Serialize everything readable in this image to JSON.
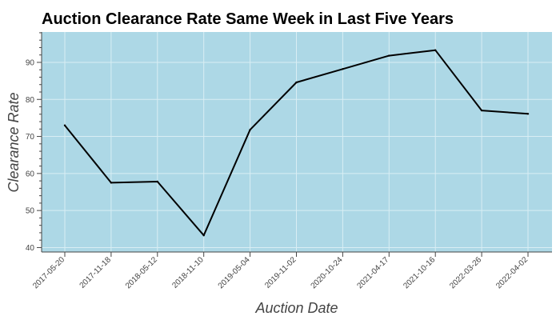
{
  "chart_data": {
    "type": "line",
    "title": "Auction Clearance Rate Same Week in Last Five Years",
    "xlabel": "Auction Date",
    "ylabel": "Clearance Rate",
    "categories": [
      "2017-05-20",
      "2017-11-18",
      "2018-05-12",
      "2018-11-10",
      "2019-05-04",
      "2019-11-02",
      "2020-10-24",
      "2021-04-17",
      "2021-10-16",
      "2022-03-26",
      "2022-04-02"
    ],
    "series": [
      {
        "values": [
          73.0,
          57.5,
          57.8,
          43.3,
          71.8,
          84.6,
          88.2,
          91.8,
          93.3,
          77.0,
          76.1
        ],
        "color": "#000000"
      }
    ],
    "yticks": [
      40,
      50,
      60,
      70,
      80,
      90
    ],
    "ylim": [
      38.8,
      98.2
    ],
    "grid": true,
    "legend": "none",
    "colors": {
      "plot_background": "#add8e6",
      "grid": "#d9eef4",
      "line": "#000000"
    }
  }
}
